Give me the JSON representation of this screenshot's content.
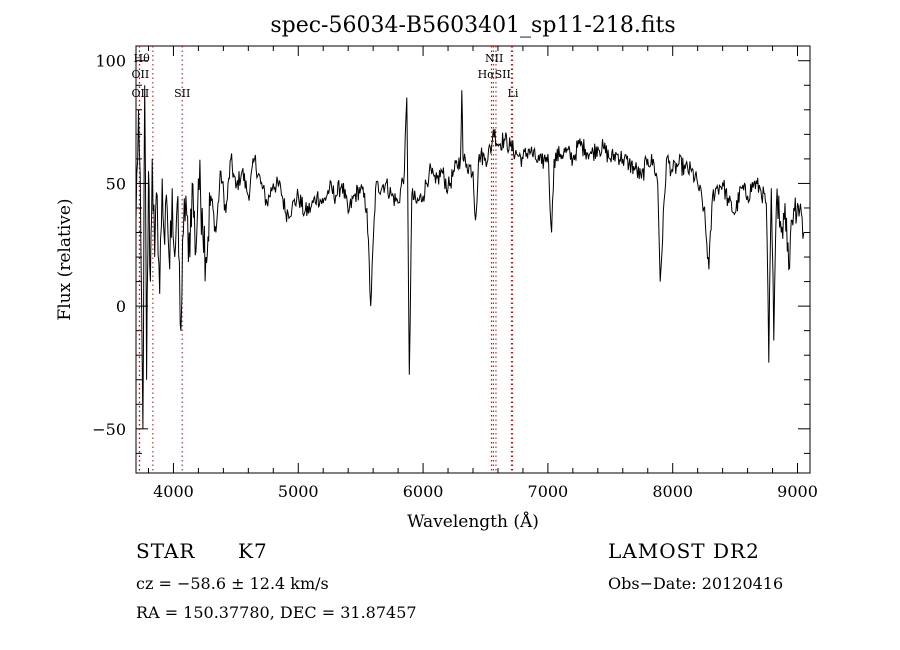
{
  "chart_data": {
    "type": "line",
    "title": "spec-56034-B5603401_sp11-218.fits",
    "xlabel": "Wavelength (Å)",
    "ylabel": "Flux (relative)",
    "xlim": [
      3700,
      9100
    ],
    "ylim": [
      -68,
      106
    ],
    "xticks": [
      4000,
      5000,
      6000,
      7000,
      8000,
      9000
    ],
    "yticks": [
      -50,
      0,
      50,
      100
    ],
    "grid": false,
    "line_color": "#000000",
    "marker_color": "#cc0000",
    "series": [
      {
        "x": [
          3700,
          3720,
          3740,
          3755,
          3770,
          3785,
          3800,
          3815,
          3830,
          3850,
          3870,
          3890,
          3910,
          3930,
          3950,
          3970,
          3990,
          4010,
          4030,
          4060,
          4080,
          4100,
          4120,
          4150,
          4180,
          4200,
          4230,
          4260,
          4300,
          4340,
          4380,
          4420,
          4460,
          4500,
          4550,
          4600,
          4650,
          4700,
          4750,
          4800,
          4860,
          4900,
          4950,
          5000,
          5050,
          5100,
          5150,
          5200,
          5250,
          5300,
          5350,
          5400,
          5450,
          5500,
          5550,
          5580,
          5620,
          5700,
          5750,
          5800,
          5850,
          5870,
          5890,
          5910,
          5950,
          6000,
          6050,
          6100,
          6150,
          6200,
          6250,
          6300,
          6310,
          6320,
          6350,
          6400,
          6420,
          6450,
          6500,
          6550,
          6563,
          6600,
          6650,
          6700,
          6750,
          6800,
          6850,
          6900,
          6950,
          7000,
          7030,
          7050,
          7100,
          7150,
          7200,
          7250,
          7300,
          7350,
          7400,
          7450,
          7500,
          7550,
          7600,
          7650,
          7700,
          7750,
          7800,
          7850,
          7880,
          7900,
          7950,
          8000,
          8050,
          8100,
          8150,
          8200,
          8250,
          8290,
          8320,
          8350,
          8400,
          8450,
          8500,
          8550,
          8600,
          8650,
          8700,
          8750,
          8770,
          8790,
          8810,
          8830,
          8850,
          8870,
          8900,
          8930,
          8950,
          8970,
          9000,
          9030,
          9050
        ],
        "y": [
          35,
          80,
          20,
          -50,
          90,
          -30,
          55,
          10,
          60,
          20,
          45,
          5,
          52,
          25,
          40,
          15,
          48,
          20,
          42,
          -10,
          30,
          45,
          18,
          50,
          22,
          52,
          40,
          20,
          45,
          30,
          55,
          38,
          60,
          48,
          55,
          45,
          60,
          50,
          42,
          50,
          48,
          38,
          40,
          45,
          38,
          40,
          45,
          42,
          48,
          45,
          50,
          38,
          45,
          48,
          40,
          0,
          48,
          50,
          45,
          42,
          55,
          85,
          -28,
          45,
          42,
          45,
          55,
          50,
          55,
          48,
          55,
          60,
          88,
          60,
          58,
          55,
          35,
          62,
          60,
          65,
          72,
          66,
          68,
          65,
          62,
          60,
          64,
          60,
          58,
          62,
          30,
          60,
          62,
          63,
          60,
          66,
          64,
          62,
          65,
          64,
          60,
          62,
          60,
          58,
          56,
          52,
          60,
          58,
          50,
          10,
          60,
          55,
          58,
          56,
          55,
          50,
          40,
          15,
          45,
          48,
          50,
          42,
          38,
          48,
          45,
          50,
          48,
          42,
          -23,
          48,
          -14,
          40,
          45,
          30,
          42,
          15,
          35,
          40,
          42,
          38,
          30
        ]
      }
    ],
    "line_markers": [
      {
        "x": 3727,
        "label": "OII"
      },
      {
        "x": 3729,
        "label": "OII"
      },
      {
        "x": 3835,
        "label": "Hθ"
      },
      {
        "x": 4070,
        "label": "SII"
      },
      {
        "x": 6548,
        "label": "NII"
      },
      {
        "x": 6563,
        "label": "Hα"
      },
      {
        "x": 6584,
        "label": "NII"
      },
      {
        "x": 6717,
        "label": "SII"
      },
      {
        "x": 6708,
        "label": "Li"
      }
    ],
    "marker_labels": [
      {
        "x": 3745,
        "row": 1,
        "text": "Hθ"
      },
      {
        "x": 3735,
        "row": 2,
        "text": "OII"
      },
      {
        "x": 3735,
        "row": 3,
        "text": "OII"
      },
      {
        "x": 4070,
        "row": 3,
        "text": "SII"
      },
      {
        "x": 6570,
        "row": 1,
        "text": "NII"
      },
      {
        "x": 6570,
        "row": 2,
        "text": "HαSII"
      },
      {
        "x": 6720,
        "row": 3,
        "text": "Li"
      }
    ]
  },
  "info": {
    "class": "STAR",
    "subclass": "K7",
    "survey": "LAMOST DR2",
    "cz": "cz = −58.6 ± 12.4 km/s",
    "obs_date": "Obs−Date: 20120416",
    "radec": "RA = 150.37780, DEC =  31.87457"
  }
}
